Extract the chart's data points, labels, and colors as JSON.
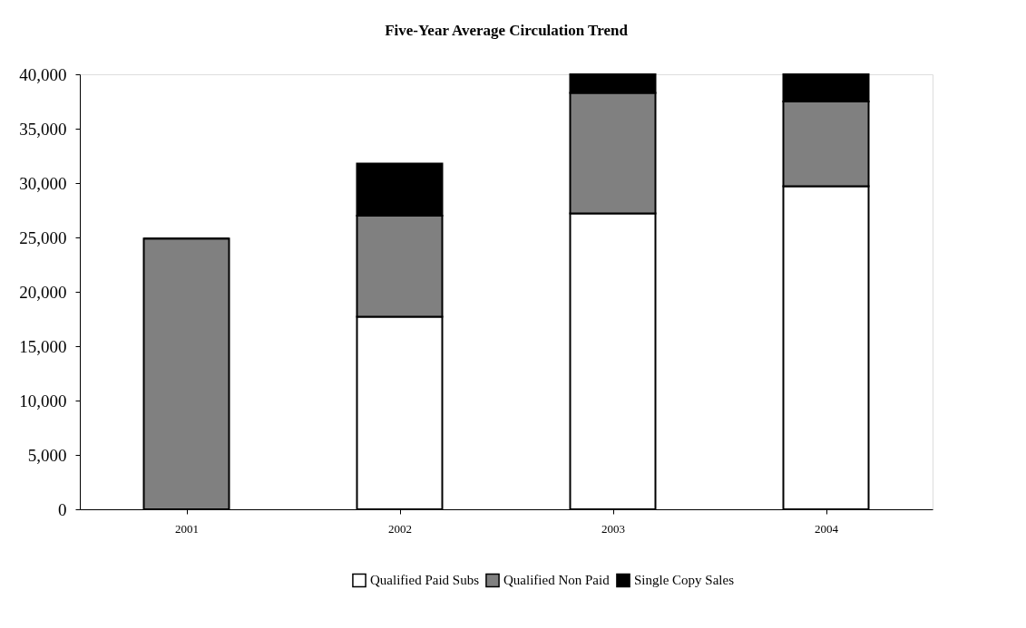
{
  "chart_data": {
    "type": "bar",
    "title": "Five-Year Average Circulation Trend",
    "categories": [
      "2001",
      "2002",
      "2003",
      "2004"
    ],
    "stacked": true,
    "series": [
      {
        "name": "Qualified Paid Subs",
        "color": "#ffffff",
        "values": [
          0,
          17700,
          27200,
          29700
        ]
      },
      {
        "name": "Qualified Non Paid",
        "color": "#808080",
        "values": [
          24900,
          9300,
          11100,
          7800
        ]
      },
      {
        "name": "Single Copy Sales",
        "color": "#000000",
        "values": [
          0,
          4800,
          1700,
          2500
        ]
      }
    ],
    "ylim": [
      0,
      40000
    ],
    "yticks": [
      0,
      {
        "value": 5000,
        "label": "5,000"
      },
      {
        "value": 10000,
        "label": "10,000"
      },
      {
        "value": 15000,
        "label": "15,000"
      },
      {
        "value": 20000,
        "label": "20,000"
      },
      {
        "value": 25000,
        "label": "25,000"
      },
      {
        "value": 30000,
        "label": "30,000"
      },
      {
        "value": 35000,
        "label": "35,000"
      },
      {
        "value": 40000,
        "label": "40,000"
      }
    ],
    "grid": false,
    "legend": "bottom"
  }
}
